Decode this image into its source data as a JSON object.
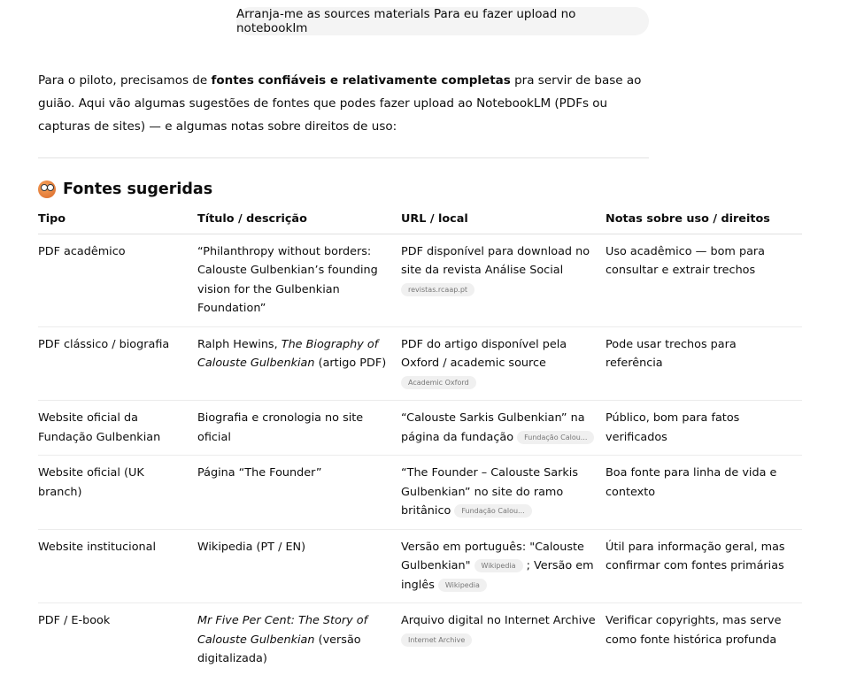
{
  "user_message": "Arranja-me as sources materials Para eu fazer upload no notebookIm",
  "intro": {
    "before": "Para o piloto, precisamos de ",
    "bold": "fontes confiáveis e relativamente completas",
    "after": " pra servir de base ao guião. Aqui vão algumas sugestões de fontes que podes fazer upload ao NotebookLM (PDFs ou capturas de sites) — e algumas notas sobre direitos de uso:"
  },
  "section": {
    "icon": "face-with-monocle-emoji-icon",
    "title": "Fontes sugeridas"
  },
  "table": {
    "headers": [
      "Tipo",
      "Título / descrição",
      "URL / local",
      "Notas sobre uso / direitos"
    ],
    "rows": [
      {
        "tipo": "PDF acadêmico",
        "titulo": [
          {
            "t": "“Philanthropy without borders: Calouste Gulbenkian’s founding vision for the Gulbenkian Foundation”"
          }
        ],
        "url": [
          {
            "t": "PDF disponível para download no site da revista Análise Social"
          },
          {
            "chip": "revistas.rcaap.pt",
            "block": true
          }
        ],
        "notas": "Uso acadêmico — bom para consultar e extrair trechos"
      },
      {
        "tipo": "PDF clássico / biografia",
        "titulo": [
          {
            "t": "Ralph Hewins, "
          },
          {
            "t": "The Biography of Calouste Gulbenkian",
            "i": true
          },
          {
            "t": " (artigo PDF)"
          }
        ],
        "url": [
          {
            "t": "PDF do artigo disponível pela Oxford / academic source"
          },
          {
            "chip": "Academic Oxford",
            "block": true
          }
        ],
        "notas": "Pode usar trechos para referência"
      },
      {
        "tipo": "Website oficial da Fundação Gulbenkian",
        "titulo": [
          {
            "t": "Biografia e cronologia no site oficial"
          }
        ],
        "url": [
          {
            "t": "“Calouste Sarkis Gulbenkian” na página da fundação"
          },
          {
            "chip": "Fundação Calou..."
          }
        ],
        "notas": "Público, bom para fatos verificados"
      },
      {
        "tipo": "Website oficial (UK branch)",
        "titulo": [
          {
            "t": "Página “The Founder”"
          }
        ],
        "url": [
          {
            "t": "“The Founder – Calouste Sarkis Gulbenkian” no site do ramo britânico"
          },
          {
            "chip": "Fundação Calou..."
          }
        ],
        "notas": "Boa fonte para linha de vida e contexto"
      },
      {
        "tipo": "Website institucional",
        "titulo": [
          {
            "t": "Wikipedia (PT / EN)"
          }
        ],
        "url": [
          {
            "t": "Versão em português: \"Calouste Gulbenkian\""
          },
          {
            "chip": "Wikipedia"
          },
          {
            "t": " ; Versão em inglês"
          },
          {
            "chip": "Wikipedia"
          }
        ],
        "notas": "Útil para informação geral, mas confirmar com fontes primárias"
      },
      {
        "tipo": "PDF / E-book",
        "titulo": [
          {
            "t": "Mr Five Per Cent: The Story of Calouste Gulbenkian",
            "i": true
          },
          {
            "t": " (versão digitalizada)"
          }
        ],
        "url": [
          {
            "t": "Arquivo digital no Internet Archive"
          },
          {
            "chip": "Internet Archive",
            "block": true
          }
        ],
        "notas": "Verificar copyrights, mas serve como fonte histórica profunda"
      }
    ]
  }
}
